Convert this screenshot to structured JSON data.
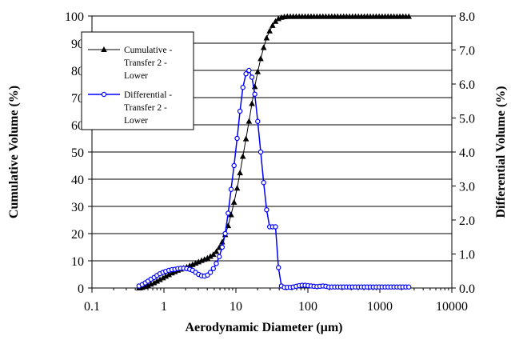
{
  "chart_data": {
    "type": "line",
    "xlabel": "Aerodynamic Diameter (µm)",
    "ylabel": "Cumulative Volume (%)",
    "y2label": "Differential Volume (%)",
    "xscale": "log",
    "xlim": [
      0.1,
      10000
    ],
    "ylim": [
      0,
      100
    ],
    "y2lim": [
      0,
      8
    ],
    "xticks": [
      "0.1",
      "1",
      "10",
      "100",
      "1000",
      "10000"
    ],
    "yticks": [
      "0",
      "10",
      "20",
      "30",
      "40",
      "50",
      "60",
      "70",
      "80",
      "90",
      "100"
    ],
    "y2ticks": [
      "0.0",
      "1.0",
      "2.0",
      "3.0",
      "4.0",
      "5.0",
      "6.0",
      "7.0",
      "8.0"
    ],
    "grid": "horizontal",
    "legend_position": "top-left",
    "series": [
      {
        "name": "Cumulative - Transfer 2 - Lower",
        "axis": "left",
        "color": "#000000",
        "marker": "triangle",
        "x": [
          0.45,
          0.5,
          0.55,
          0.6,
          0.66,
          0.73,
          0.8,
          0.88,
          0.97,
          1.06,
          1.17,
          1.29,
          1.42,
          1.56,
          1.71,
          1.88,
          2.07,
          2.28,
          2.5,
          2.75,
          3.03,
          3.33,
          3.66,
          4.02,
          4.42,
          4.86,
          5.34,
          5.87,
          6.45,
          7.1,
          7.8,
          8.57,
          9.42,
          10.4,
          11.4,
          12.5,
          13.8,
          15.2,
          16.7,
          18.3,
          20.1,
          22.1,
          24.3,
          26.7,
          29.4,
          32.3,
          35.5,
          39.0,
          42.9,
          47.1,
          51.8,
          57.0,
          62.6,
          68.8,
          75.7,
          83.2,
          91.5,
          100.6,
          110.6,
          121.6,
          133.7,
          147.0,
          161.6,
          177.7,
          195.3,
          214.7,
          236.1,
          259.5,
          285.3,
          313.7,
          344.9,
          379.2,
          416.9,
          458.3,
          503.9,
          554.0,
          609.1,
          669.6,
          736.2,
          809.4,
          889.9,
          978.3,
          1075.6,
          1182.5,
          1300.1,
          1429.3,
          1571.4,
          1727.6,
          1899.4,
          2088.2,
          2295.8,
          2524.1
        ],
        "y": [
          0.0,
          0.2,
          0.5,
          0.9,
          1.4,
          1.9,
          2.5,
          3.1,
          3.7,
          4.3,
          4.9,
          5.5,
          6.0,
          6.5,
          6.9,
          7.3,
          7.7,
          8.2,
          8.6,
          9.1,
          9.6,
          10.1,
          10.5,
          11.0,
          11.6,
          12.3,
          13.4,
          14.9,
          16.9,
          19.6,
          22.9,
          26.9,
          31.5,
          36.7,
          42.3,
          48.4,
          54.8,
          61.3,
          67.8,
          74.0,
          79.5,
          84.3,
          88.4,
          91.9,
          94.5,
          96.5,
          98.0,
          99.0,
          99.5,
          99.7,
          99.8,
          99.8,
          99.8,
          99.8,
          99.8,
          99.8,
          99.8,
          99.8,
          99.8,
          99.8,
          99.8,
          99.8,
          99.8,
          99.8,
          99.8,
          99.8,
          99.8,
          99.8,
          99.8,
          99.8,
          99.8,
          99.8,
          99.8,
          99.8,
          99.8,
          99.8,
          99.8,
          99.8,
          99.8,
          99.8,
          99.8,
          99.8,
          99.8,
          99.8,
          99.8,
          99.8,
          99.8,
          99.8,
          99.8,
          99.8,
          99.8,
          99.8
        ]
      },
      {
        "name": "Differential - Transfer 2 - Lower",
        "axis": "right",
        "color": "#0000ff",
        "marker": "open-circle",
        "x": [
          0.45,
          0.5,
          0.55,
          0.6,
          0.66,
          0.73,
          0.8,
          0.88,
          0.97,
          1.06,
          1.17,
          1.29,
          1.42,
          1.56,
          1.71,
          1.88,
          2.07,
          2.28,
          2.5,
          2.75,
          3.03,
          3.33,
          3.66,
          4.02,
          4.42,
          4.86,
          5.34,
          5.87,
          6.45,
          7.1,
          7.8,
          8.57,
          9.42,
          10.4,
          11.4,
          12.5,
          13.8,
          15.2,
          16.7,
          18.3,
          20.1,
          22.1,
          24.3,
          26.7,
          29.4,
          32.3,
          35.5,
          39.0,
          42.9,
          47.1,
          51.8,
          57.0,
          62.6,
          68.8,
          75.7,
          83.2,
          91.5,
          100.6,
          110.6,
          121.6,
          133.7,
          147.0,
          161.6,
          177.7,
          195.3,
          214.7,
          236.1,
          259.5,
          285.3,
          313.7,
          344.9,
          379.2,
          416.9,
          458.3,
          503.9,
          554.0,
          609.1,
          669.6,
          736.2,
          809.4,
          889.9,
          978.3,
          1075.6,
          1182.5,
          1300.1,
          1429.3,
          1571.4,
          1727.6,
          1899.4,
          2088.2,
          2295.8,
          2524.1
        ],
        "y": [
          0.06,
          0.1,
          0.15,
          0.2,
          0.26,
          0.31,
          0.37,
          0.42,
          0.46,
          0.49,
          0.52,
          0.54,
          0.55,
          0.57,
          0.58,
          0.58,
          0.57,
          0.55,
          0.52,
          0.46,
          0.4,
          0.36,
          0.35,
          0.38,
          0.46,
          0.57,
          0.72,
          0.92,
          1.2,
          1.6,
          2.2,
          2.9,
          3.6,
          4.4,
          5.2,
          5.9,
          6.3,
          6.4,
          6.2,
          5.7,
          4.9,
          4.0,
          3.1,
          2.3,
          1.8,
          1.8,
          1.8,
          0.6,
          0.06,
          0.02,
          0.02,
          0.02,
          0.03,
          0.05,
          0.07,
          0.08,
          0.08,
          0.07,
          0.06,
          0.05,
          0.04,
          0.05,
          0.06,
          0.05,
          0.03,
          0.03,
          0.03,
          0.03,
          0.03,
          0.03,
          0.03,
          0.03,
          0.03,
          0.03,
          0.03,
          0.03,
          0.03,
          0.03,
          0.03,
          0.03,
          0.03,
          0.03,
          0.03,
          0.03,
          0.03,
          0.03,
          0.03,
          0.03,
          0.03,
          0.03,
          0.03,
          0.03
        ]
      }
    ]
  },
  "legend": {
    "items": [
      {
        "lines": [
          "Cumulative -",
          "Transfer 2 -",
          "Lower"
        ],
        "color": "#000000",
        "marker": "triangle"
      },
      {
        "lines": [
          "Differential -",
          "Transfer 2 -",
          "Lower"
        ],
        "color": "#0000ff",
        "marker": "open-circle"
      }
    ]
  }
}
